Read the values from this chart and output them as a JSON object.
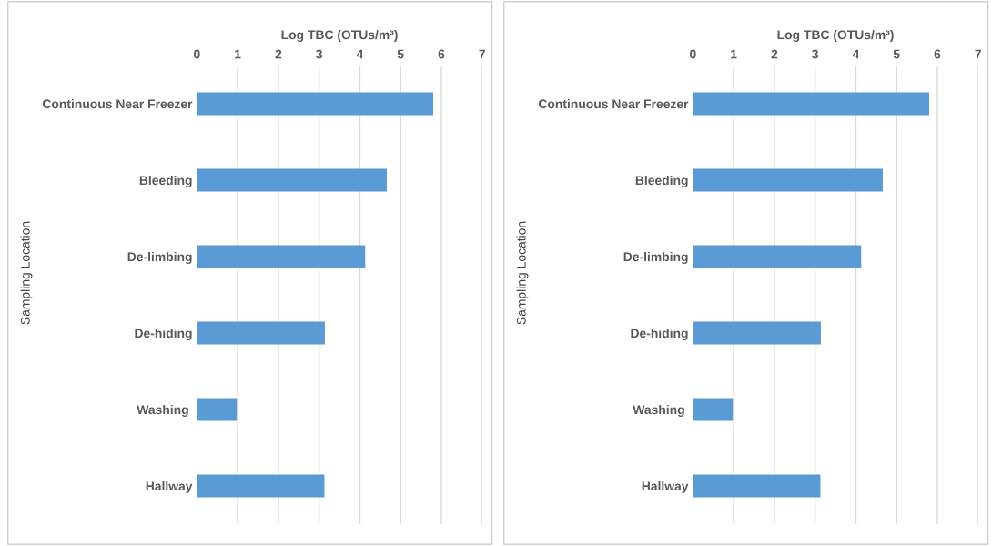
{
  "chart_data": [
    {
      "type": "bar",
      "orientation": "horizontal",
      "xlabel": "Log TBC (OTUs/m³)",
      "ylabel": "Sampling Location",
      "categories": [
        "Continuous Near Freezer",
        "Bleeding",
        "De-limbing",
        "De-hiding",
        "Washing ",
        "Hallway"
      ],
      "values": [
        5.8,
        4.66,
        4.13,
        3.14,
        0.98,
        3.13
      ],
      "color": "#5b9bd5",
      "xlim": [
        0,
        7
      ],
      "xticks": [
        0,
        1,
        2,
        3,
        4,
        5,
        6,
        7
      ],
      "grid": "x"
    },
    {
      "type": "bar",
      "orientation": "horizontal",
      "xlabel": "Log TBC (OTUs/m³)",
      "ylabel": "Sampling Location",
      "categories": [
        "Continuous Near Freezer",
        "Bleeding",
        "De-limbing",
        "De-hiding",
        "Washing ",
        "Hallway"
      ],
      "values": [
        5.8,
        4.66,
        4.13,
        3.14,
        0.98,
        3.13
      ],
      "color": "#5b9bd5",
      "xlim": [
        0,
        7
      ],
      "xticks": [
        0,
        1,
        2,
        3,
        4,
        5,
        6,
        7
      ],
      "grid": "x"
    }
  ]
}
